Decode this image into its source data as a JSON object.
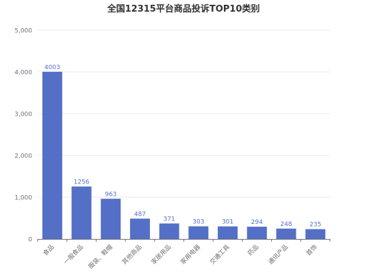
{
  "chart_data": {
    "type": "bar",
    "title": "全国12315平台商品投诉TOP10类别",
    "xlabel": "",
    "ylabel": "",
    "categories": [
      "食品",
      "一般食品",
      "服装、鞋帽",
      "其他商品",
      "家居用品",
      "家用电器",
      "交通工具",
      "药品",
      "通讯产品",
      "首饰"
    ],
    "values": [
      4003,
      1256,
      963,
      487,
      371,
      303,
      301,
      294,
      248,
      235
    ],
    "ylim": [
      0,
      5000
    ],
    "yticks": [
      0,
      1000,
      2000,
      3000,
      4000,
      5000
    ],
    "ytick_labels": [
      "0",
      "1,000",
      "2,000",
      "3,000",
      "4,000",
      "5,000"
    ],
    "grid": true,
    "data_labels": true,
    "bar_color": "#5470c6",
    "label_color": "#5470c6",
    "axis_color": "#6e7079",
    "grid_color": "#e9e9e9"
  }
}
